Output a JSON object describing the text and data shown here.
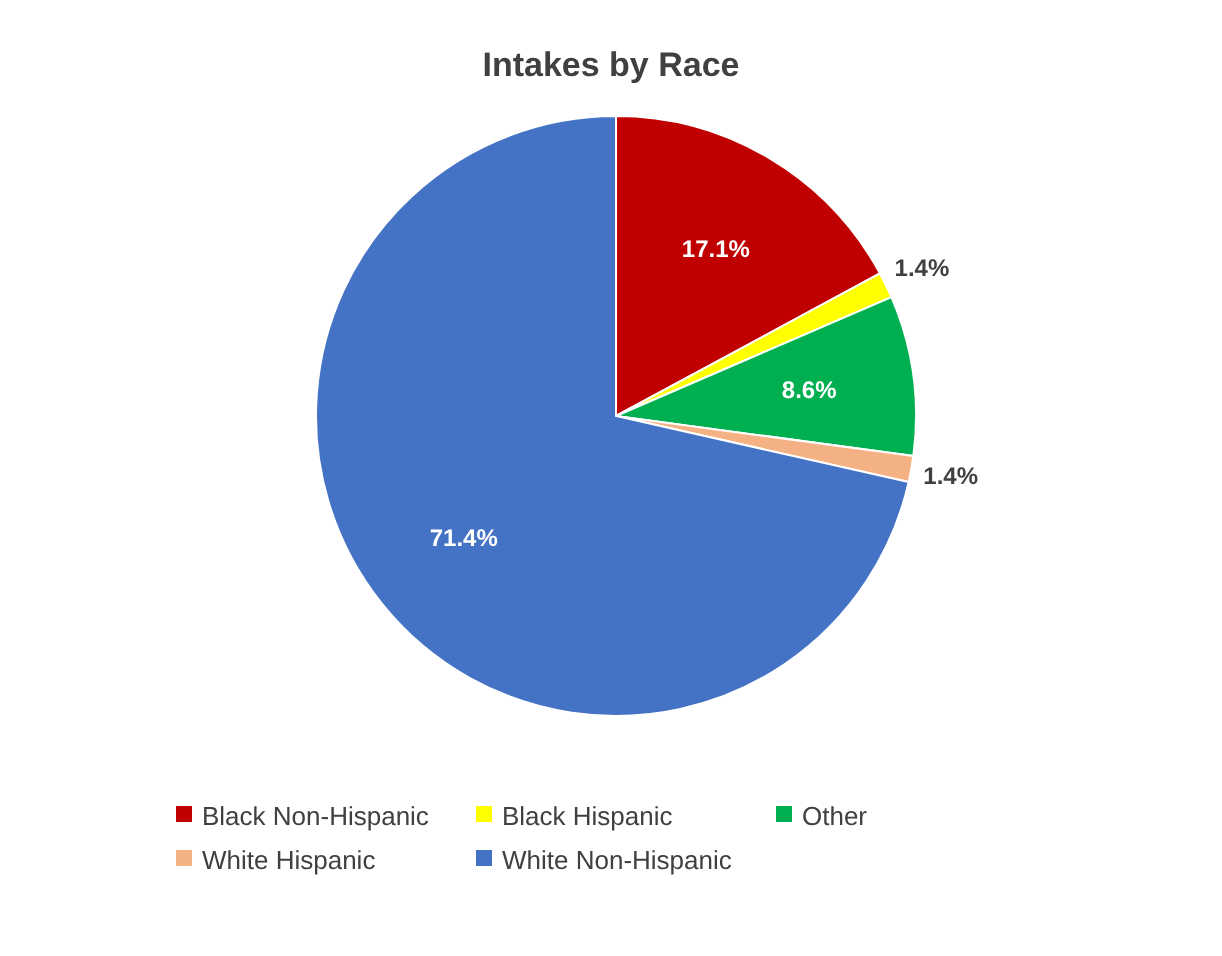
{
  "chart_data": {
    "type": "pie",
    "title": "Intakes by Race",
    "categories": [
      "Black Non-Hispanic",
      "Black Hispanic",
      "Other",
      "White Hispanic",
      "White Non-Hispanic"
    ],
    "values": [
      17.1,
      1.4,
      8.6,
      1.4,
      71.4
    ],
    "colors": [
      "#c00000",
      "#ffff00",
      "#00b050",
      "#f4b183",
      "#4472c4"
    ],
    "value_labels": [
      "17.1%",
      "1.4%",
      "8.6%",
      "1.4%",
      "71.4%"
    ],
    "legend": "bottom"
  }
}
